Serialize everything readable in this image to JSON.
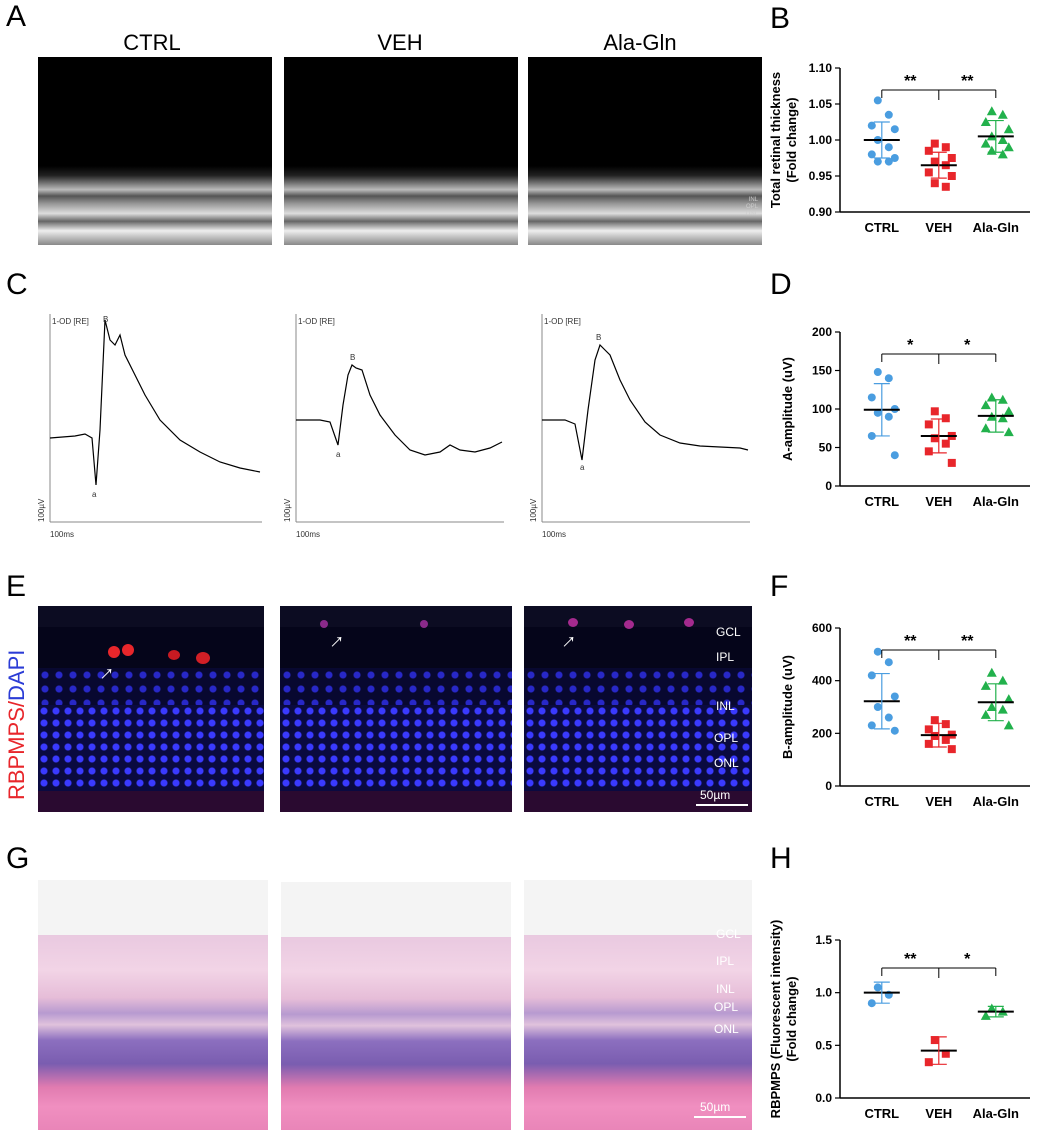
{
  "panel_letters": {
    "a": "A",
    "b": "B",
    "c": "C",
    "d": "D",
    "e": "E",
    "f": "F",
    "g": "G",
    "h": "H"
  },
  "columns": {
    "ctrl": "CTRL",
    "veh": "VEH",
    "ala": "Ala-Gln"
  },
  "erg": {
    "trace_label": "1-OD [RE]",
    "b_wave": "B",
    "a_wave": "a",
    "y_scale": "100µV",
    "x_scale": "100ms"
  },
  "stain": {
    "red": "RBPMPS",
    "sep": "/",
    "blue": "DAPI"
  },
  "layers": {
    "gcl": "GCL",
    "ipl": "IPL",
    "inl": "INL",
    "opl": "OPL",
    "onl": "ONL"
  },
  "scale_bar": "50µm",
  "oct_layer_marks": {
    "inl": "INL",
    "opl": "OPL",
    "onl": "ONL"
  },
  "chart_data": [
    {
      "type": "scatter",
      "panel": "B",
      "categories": [
        "CTRL",
        "VEH",
        "Ala-Gln"
      ],
      "ylabel": "Total retinal thickness\n(Fold change)",
      "ylim": [
        0.9,
        1.1
      ],
      "yticks": [
        "0.90",
        "0.95",
        "1.00",
        "1.05",
        "1.10"
      ],
      "means": [
        1.0,
        0.965,
        1.005
      ],
      "sd": [
        0.025,
        0.018,
        0.022
      ],
      "points": [
        [
          1.055,
          1.035,
          1.02,
          1.015,
          1.0,
          0.99,
          0.98,
          0.975,
          0.97,
          0.97
        ],
        [
          0.995,
          0.99,
          0.985,
          0.975,
          0.97,
          0.965,
          0.955,
          0.95,
          0.94,
          0.935
        ],
        [
          1.04,
          1.035,
          1.025,
          1.015,
          1.005,
          1.0,
          0.995,
          0.99,
          0.985,
          0.98
        ]
      ],
      "significance": [
        "**",
        "**"
      ],
      "colors": [
        "#4a9de0",
        "#e8262b",
        "#22b14c"
      ],
      "markers": [
        "circle",
        "square",
        "triangle"
      ]
    },
    {
      "type": "scatter",
      "panel": "D",
      "categories": [
        "CTRL",
        "VEH",
        "Ala-Gln"
      ],
      "ylabel": "A-amplitude (uV)",
      "ylim": [
        0,
        200
      ],
      "yticks": [
        "0",
        "50",
        "100",
        "150",
        "200"
      ],
      "means": [
        99,
        65,
        91
      ],
      "sd": [
        34,
        22,
        21
      ],
      "points": [
        [
          148,
          140,
          115,
          100,
          95,
          90,
          65,
          40
        ],
        [
          97,
          88,
          80,
          65,
          62,
          55,
          45,
          30
        ],
        [
          115,
          112,
          105,
          97,
          90,
          88,
          75,
          70
        ]
      ],
      "significance": [
        "*",
        "*"
      ],
      "colors": [
        "#4a9de0",
        "#e8262b",
        "#22b14c"
      ],
      "markers": [
        "circle",
        "square",
        "triangle"
      ]
    },
    {
      "type": "scatter",
      "panel": "F",
      "categories": [
        "CTRL",
        "VEH",
        "Ala-Gln"
      ],
      "ylabel": "B-amplitude (uV)",
      "ylim": [
        0,
        600
      ],
      "yticks": [
        "0",
        "200",
        "400",
        "600"
      ],
      "means": [
        322,
        193,
        318
      ],
      "sd": [
        105,
        45,
        70
      ],
      "points": [
        [
          510,
          470,
          420,
          340,
          300,
          260,
          230,
          210
        ],
        [
          250,
          235,
          215,
          195,
          190,
          175,
          160,
          140
        ],
        [
          430,
          400,
          380,
          330,
          300,
          290,
          270,
          230
        ]
      ],
      "significance": [
        "**",
        "**"
      ],
      "colors": [
        "#4a9de0",
        "#e8262b",
        "#22b14c"
      ],
      "markers": [
        "circle",
        "square",
        "triangle"
      ]
    },
    {
      "type": "scatter",
      "panel": "H",
      "categories": [
        "CTRL",
        "VEH",
        "Ala-Gln"
      ],
      "ylabel": "RBPMPS (Fluorescent intensity)\n(Fold change)",
      "ylim": [
        0,
        1.5
      ],
      "yticks": [
        "0.0",
        "0.5",
        "1.0",
        "1.5"
      ],
      "means": [
        1.0,
        0.45,
        0.82
      ],
      "sd": [
        0.1,
        0.13,
        0.05
      ],
      "points": [
        [
          1.05,
          0.98,
          0.9
        ],
        [
          0.55,
          0.42,
          0.34
        ],
        [
          0.85,
          0.82,
          0.78
        ]
      ],
      "significance": [
        "**",
        "*"
      ],
      "colors": [
        "#4a9de0",
        "#e8262b",
        "#22b14c"
      ],
      "markers": [
        "circle",
        "square",
        "triangle"
      ]
    }
  ]
}
